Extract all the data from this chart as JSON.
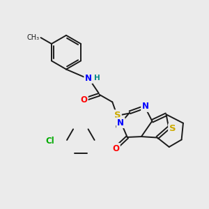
{
  "bg_color": "#ebebeb",
  "bond_color": "#1a1a1a",
  "bond_width": 1.4,
  "atom_colors": {
    "N": "#0000ff",
    "O": "#ff0000",
    "S": "#ccaa00",
    "Cl": "#00aa00",
    "H": "#008888",
    "C": "#1a1a1a"
  },
  "font_size": 8.5,
  "fig_size": [
    3.0,
    3.0
  ],
  "dpi": 100
}
